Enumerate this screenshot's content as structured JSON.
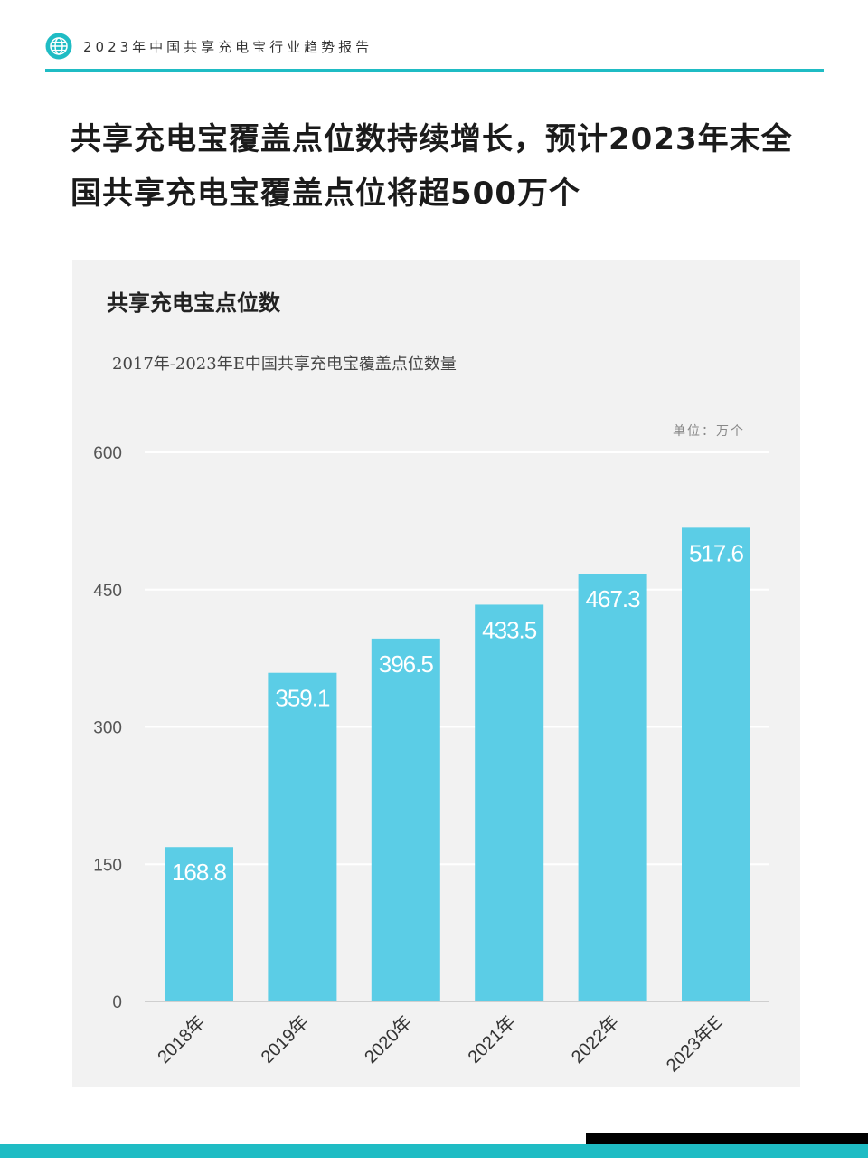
{
  "header": {
    "title": "2023年中国共享充电宝行业趋势报告",
    "logo_icon": "globe-icon",
    "accent": "#1fbcc4"
  },
  "headline": "共享充电宝覆盖点位数持续增长，预计2023年末全国共享充电宝覆盖点位将超500万个",
  "chart": {
    "title": "共享充电宝点位数",
    "subtitle": "2017年-2023年E中国共享充电宝覆盖点位数量",
    "unit": "单位：万个"
  },
  "chart_data": {
    "type": "bar",
    "categories": [
      "2018年",
      "2019年",
      "2020年",
      "2021年",
      "2022年",
      "2023年E"
    ],
    "values": [
      168.8,
      359.1,
      396.5,
      433.5,
      467.3,
      517.6
    ],
    "value_labels": [
      "168.8",
      "359.1",
      "396.5",
      "433.5",
      "467.3",
      "517.6"
    ],
    "ylim": [
      0,
      600
    ],
    "yticks": [
      0,
      150,
      300,
      450,
      600
    ],
    "grid": true,
    "bar_color": "#5bcde6",
    "label_color": "#ffffff"
  }
}
